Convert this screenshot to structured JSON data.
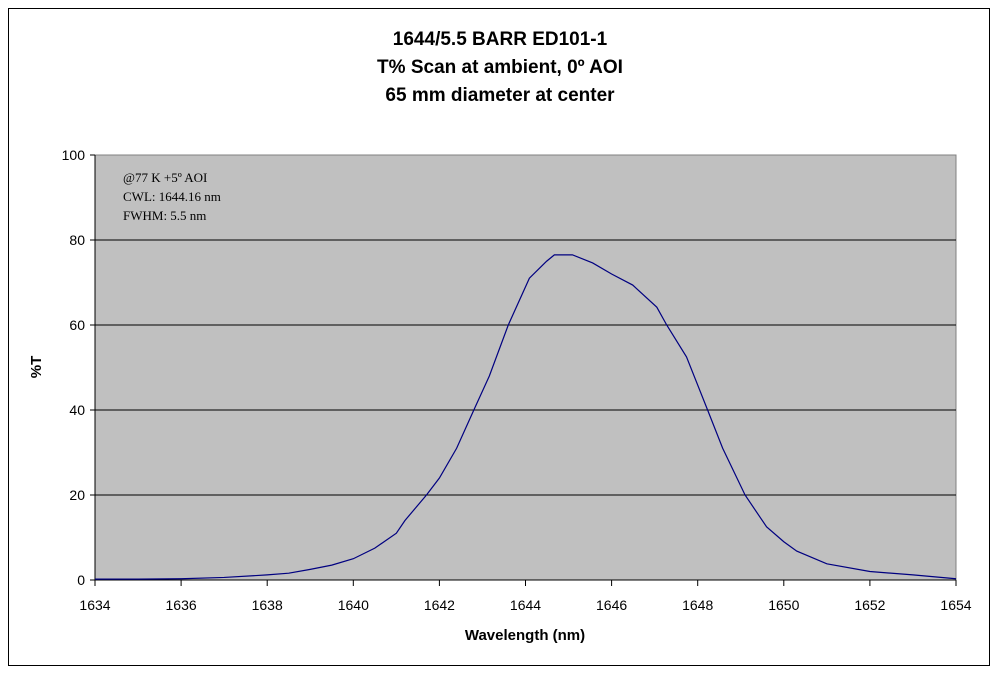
{
  "chart_data": {
    "type": "line",
    "title": [
      "1644/5.5 BARR ED101-1",
      "T%  Scan at ambient, 0º AOI",
      "65 mm diameter at center"
    ],
    "xlabel": "Wavelength (nm)",
    "ylabel": "%T",
    "xlim": [
      1634,
      1654
    ],
    "ylim": [
      0,
      100
    ],
    "xticks": [
      1634,
      1636,
      1638,
      1640,
      1642,
      1644,
      1646,
      1648,
      1650,
      1652,
      1654
    ],
    "yticks": [
      0,
      20,
      40,
      60,
      80,
      100
    ],
    "grid": "horizontal",
    "annotation": [
      "@77 K   +5º AOI",
      "CWL: 1644.16 nm",
      "FWHM: 5.5 nm"
    ],
    "colors": {
      "plot_bg": "#c0c0c0",
      "line": "#000080"
    },
    "series": [
      {
        "x": [
          1634,
          1635,
          1636,
          1637,
          1638,
          1638.5,
          1639,
          1639.5,
          1640,
          1640.5,
          1641,
          1641.2,
          1641.7,
          1642,
          1642.4,
          1642.8,
          1643.16,
          1643.6,
          1644.09,
          1644.49,
          1644.67,
          1645.09,
          1645.56,
          1646.0,
          1646.49,
          1647.05,
          1647.28,
          1647.74,
          1648.23,
          1648.58,
          1649.1,
          1649.6,
          1650,
          1650.3,
          1651,
          1652,
          1653,
          1654
        ],
        "y": [
          0.2,
          0.2,
          0.3,
          0.6,
          1.2,
          1.6,
          2.5,
          3.5,
          5,
          7.5,
          11,
          14,
          20,
          24,
          31,
          40,
          48,
          60,
          71,
          75,
          76.5,
          76.5,
          74.6,
          72,
          69.4,
          64.2,
          60,
          52.5,
          40,
          31,
          20,
          12.5,
          9,
          6.8,
          3.8,
          2,
          1.2,
          0.3
        ]
      }
    ]
  }
}
